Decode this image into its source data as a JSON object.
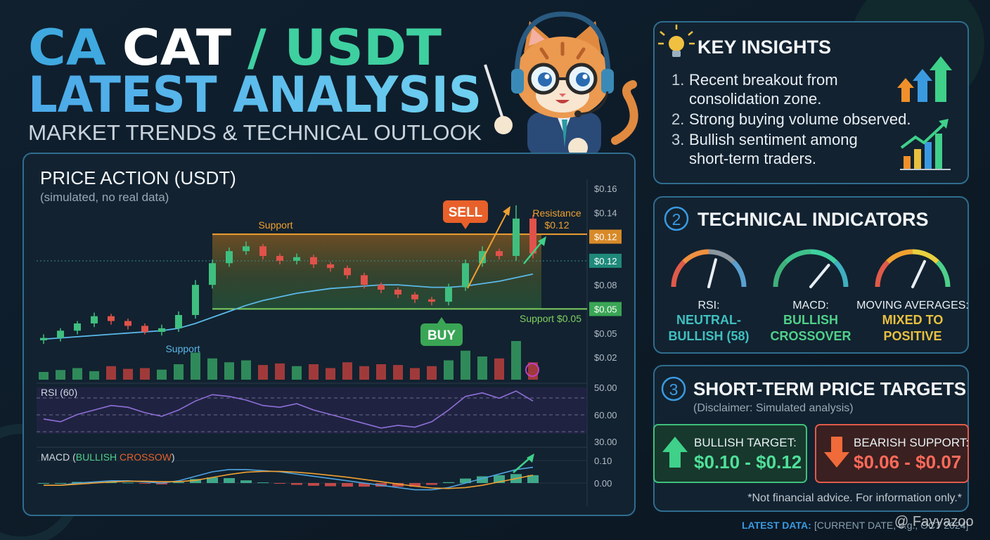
{
  "header": {
    "title_parts": [
      "CA",
      "CAT",
      "/ USDT"
    ],
    "title_line2": "LATEST ANALYSIS",
    "subtitle": "MARKET TRENDS & TECHNICAL OUTLOOK"
  },
  "price_panel": {
    "title": "PRICE ACTION (USDT)",
    "subtitle": "(simulated, no real data)",
    "type": "candlestick",
    "ylim": [
      0.02,
      0.16
    ],
    "ytick_labels": [
      "$0.16",
      "$0.14",
      "$0.12",
      "$0.12",
      "$0.08",
      "$0.05",
      "$0.05",
      "$0.02"
    ],
    "open": [
      0.034,
      0.036,
      0.042,
      0.048,
      0.054,
      0.05,
      0.046,
      0.041,
      0.044,
      0.055,
      0.08,
      0.098,
      0.108,
      0.112,
      0.104,
      0.1,
      0.103,
      0.097,
      0.094,
      0.088,
      0.08,
      0.076,
      0.072,
      0.068,
      0.066,
      0.078,
      0.098,
      0.108,
      0.104,
      0.135
    ],
    "high": [
      0.039,
      0.044,
      0.05,
      0.057,
      0.056,
      0.052,
      0.048,
      0.047,
      0.058,
      0.084,
      0.101,
      0.111,
      0.116,
      0.114,
      0.106,
      0.106,
      0.105,
      0.099,
      0.096,
      0.09,
      0.082,
      0.078,
      0.074,
      0.07,
      0.081,
      0.101,
      0.112,
      0.11,
      0.146,
      0.138
    ],
    "low": [
      0.031,
      0.033,
      0.039,
      0.045,
      0.047,
      0.043,
      0.039,
      0.038,
      0.041,
      0.052,
      0.077,
      0.095,
      0.105,
      0.101,
      0.097,
      0.097,
      0.094,
      0.091,
      0.085,
      0.077,
      0.073,
      0.069,
      0.065,
      0.063,
      0.063,
      0.075,
      0.095,
      0.101,
      0.1,
      0.102
    ],
    "close": [
      0.036,
      0.042,
      0.048,
      0.054,
      0.05,
      0.046,
      0.041,
      0.044,
      0.055,
      0.08,
      0.098,
      0.108,
      0.112,
      0.104,
      0.1,
      0.103,
      0.097,
      0.094,
      0.088,
      0.08,
      0.076,
      0.072,
      0.068,
      0.066,
      0.078,
      0.098,
      0.108,
      0.104,
      0.135,
      0.106
    ],
    "up_color": "#3fbf7f",
    "down_color": "#e0524a",
    "moving_average": {
      "color": "#5ab8e8",
      "values": [
        0.035,
        0.036,
        0.037,
        0.038,
        0.039,
        0.04,
        0.041,
        0.042,
        0.044,
        0.048,
        0.053,
        0.058,
        0.063,
        0.067,
        0.07,
        0.073,
        0.075,
        0.077,
        0.078,
        0.079,
        0.08,
        0.08,
        0.079,
        0.078,
        0.078,
        0.079,
        0.081,
        0.083,
        0.086,
        0.089
      ]
    },
    "zone": {
      "top": 0.122,
      "bottom": 0.06
    },
    "volume": {
      "ylim": [
        0,
        100
      ],
      "values": [
        20,
        25,
        30,
        22,
        35,
        28,
        30,
        26,
        40,
        70,
        55,
        45,
        50,
        38,
        42,
        35,
        40,
        30,
        45,
        35,
        40,
        38,
        30,
        35,
        50,
        75,
        60,
        55,
        100,
        45
      ]
    },
    "annotations": {
      "support_top": "Support",
      "resistance": "Resistance",
      "resistance_price": "$0.12",
      "support_bottom": "Support $0.05",
      "support_ma": "Support",
      "sell": "SELL",
      "buy": "BUY"
    },
    "rsi": {
      "label": "RSI (60)",
      "ylim": [
        20,
        80
      ],
      "ytick_labels": [
        "50.00",
        "60.00",
        "30.00"
      ],
      "color": "#8f6fd8",
      "values": [
        45,
        42,
        50,
        55,
        60,
        58,
        52,
        48,
        55,
        65,
        72,
        70,
        66,
        60,
        58,
        62,
        55,
        50,
        45,
        40,
        35,
        38,
        36,
        42,
        55,
        70,
        74,
        68,
        76,
        65
      ]
    },
    "macd": {
      "label_parts": [
        "MACD (",
        "BULLISH",
        " CROSSOW",
        ")"
      ],
      "ylim": [
        -0.04,
        0.14
      ],
      "yticks": [
        {
          "value": 0.1,
          "label": "0.10"
        },
        {
          "value": 0,
          "label": "0.00"
        }
      ],
      "macd_line": {
        "color": "#4fa3e0",
        "values": [
          -0.01,
          -0.01,
          0,
          0.005,
          0.01,
          0.01,
          0.005,
          0,
          0.01,
          0.03,
          0.05,
          0.06,
          0.06,
          0.055,
          0.05,
          0.04,
          0.03,
          0.02,
          0.01,
          0,
          -0.01,
          -0.02,
          -0.03,
          -0.03,
          -0.02,
          0,
          0.02,
          0.04,
          0.06,
          0.07
        ]
      },
      "signal_line": {
        "color": "#f0a030",
        "values": [
          -0.01,
          -0.01,
          -0.005,
          0,
          0.005,
          0.008,
          0.008,
          0.006,
          0.006,
          0.012,
          0.025,
          0.038,
          0.048,
          0.052,
          0.052,
          0.048,
          0.042,
          0.034,
          0.026,
          0.016,
          0.006,
          -0.004,
          -0.014,
          -0.022,
          -0.024,
          -0.02,
          -0.01,
          0.005,
          0.02,
          0.035
        ]
      },
      "histogram": [
        0,
        0,
        0.005,
        0.005,
        0.005,
        0.002,
        -0.003,
        -0.006,
        0.004,
        0.018,
        0.025,
        0.022,
        0.012,
        0.003,
        -0.002,
        -0.008,
        -0.012,
        -0.014,
        -0.016,
        -0.016,
        -0.016,
        -0.016,
        -0.016,
        -0.008,
        0.004,
        0.02,
        0.03,
        0.035,
        0.04,
        0.035
      ]
    }
  },
  "key_insights": {
    "title": "KEY INSIGHTS",
    "items": [
      {
        "number": "1.",
        "lines": [
          "Recent breakout from",
          "consolidation zone."
        ]
      },
      {
        "number": "2.",
        "lines": [
          "Strong buying volume observed."
        ]
      },
      {
        "number": "3.",
        "lines": [
          "Bullish sentiment among",
          "short-term traders."
        ]
      }
    ]
  },
  "technical_indicators": {
    "number": "2",
    "title": "TECHNICAL INDICATORS",
    "gauge_scale": [
      0,
      100
    ],
    "gauges": [
      {
        "name": "RSI:",
        "lines": [
          "NEUTRAL-",
          "BULLISH (58)"
        ],
        "value": 58,
        "color": "#3fc0c0"
      },
      {
        "name": "MACD:",
        "lines": [
          "BULLISH",
          "CROSSOVER"
        ],
        "value": 72,
        "color": "#4fd08a"
      },
      {
        "name": "MOVING AVERAGES:",
        "lines": [
          "MIXED TO",
          "POSITIVE"
        ],
        "value": 64,
        "color": "#e8c040"
      }
    ]
  },
  "price_targets": {
    "number": "3",
    "title": "SHORT-TERM PRICE TARGETS",
    "disclaimer": "(Disclaimer: Simulated analysis)",
    "bullish": {
      "label": "BULLISH TARGET:",
      "range": "$0.10 - $0.12"
    },
    "bearish": {
      "label": "BEARISH SUPPORT:",
      "range": "$0.06 - $0.07"
    },
    "note": "*Not financial advice. For information only.*"
  },
  "footer": {
    "label": "LATEST DATA:",
    "date": "[CURRENT DATE, e.g., OCT 2024]",
    "watermark": "@ Fayyazoo"
  }
}
